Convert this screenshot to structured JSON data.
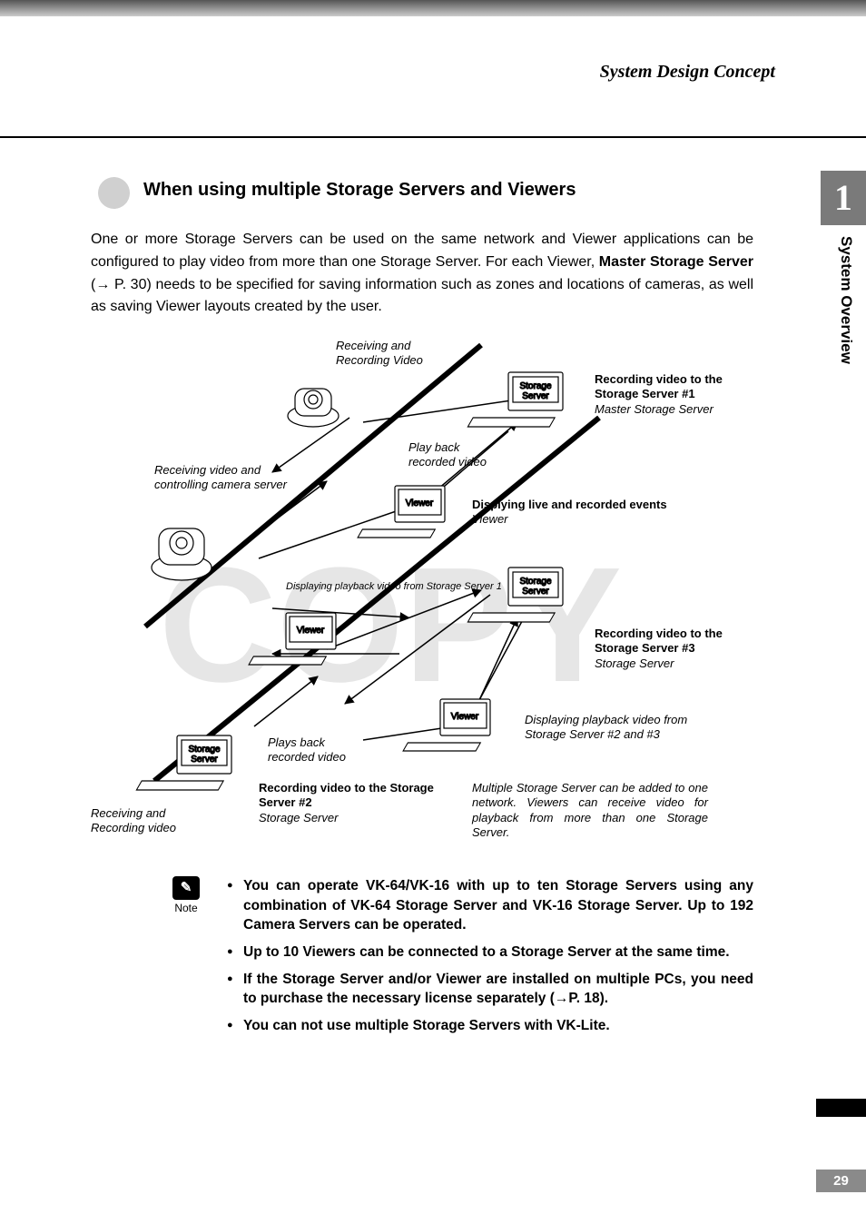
{
  "header": {
    "title": "System Design Concept"
  },
  "sidebar": {
    "chapter_num": "1",
    "chapter_title": "System Overview"
  },
  "section": {
    "heading": "When using multiple Storage Servers and Viewers"
  },
  "intro": {
    "text_a": "One or more Storage Servers can be used on the same network and Viewer applications can be configured to play video from more than one Storage Server. For each Viewer, ",
    "text_bold": "Master Storage Server",
    "text_b": " (→ P. 30) needs to be specified for saving information such as zones and locations of cameras, as well as saving Viewer layouts created by the user."
  },
  "diagram": {
    "watermark": "COPY",
    "labels": {
      "recv_rec_video": "Receiving and\nRecording Video",
      "play_back_1": "Play back\nrecorded video",
      "rec_to_ss1_bold": "Recording video to the Storage Server #1",
      "rec_to_ss1_it": "Master Storage Server",
      "recv_ctrl": "Receiving video and\ncontrolling camera server",
      "disp_live_bold": "Displying live and recorded events",
      "disp_live_it": "Viewer",
      "disp_pb_ss1": "Displaying playback video from Storage Server 1",
      "rec_to_ss3_bold": "Recording video to the Storage Server #3",
      "rec_to_ss3_it": "Storage Server",
      "plays_back": "Plays back\nrecorded video",
      "disp_pb_23": "Displaying playback video from Storage Server #2 and #3",
      "rec_to_ss2_bold": "Recording video to the Storage Server #2",
      "rec_to_ss2_it": "Storage Server",
      "recv_rec_bottom": "Receiving and Recording video",
      "multi_note": "Multiple Storage Server can be added to one network. Viewers can receive video for playback from more than one Storage Server.",
      "viewer": "Viewer",
      "storage_server": "Storage\nServer"
    },
    "colors": {
      "line": "#000000",
      "watermark": "#d8d8d8",
      "device_fill": "#ffffff"
    }
  },
  "note": {
    "label": "Note",
    "items": [
      "You can operate VK-64/VK-16 with up to ten Storage Servers using any combination of VK-64 Storage Server and VK-16 Storage Server. Up to 192 Camera Servers can be operated.",
      "Up to 10 Viewers can be connected to a Storage Server at the same time.",
      "If the Storage Server and/or Viewer are installed on multiple PCs, you need to purchase the necessary license separately (→P. 18).",
      "You can not use multiple Storage Servers with VK-Lite."
    ]
  },
  "page_number": "29"
}
